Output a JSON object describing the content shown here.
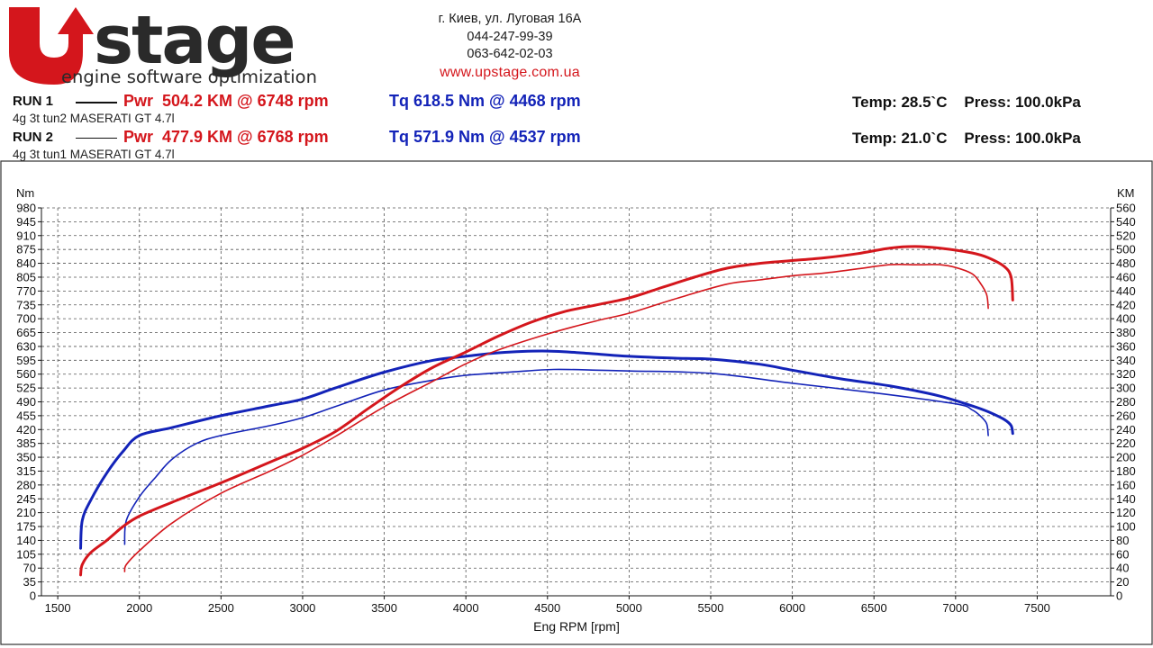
{
  "brand": {
    "logo_text": "UPstage",
    "tagline": "engine software optimization",
    "colors": {
      "red": "#d4161c",
      "dark": "#222222"
    }
  },
  "contacts": {
    "address": "г. Киев, ул. Луговая 16А",
    "phone1": "044-247-99-39",
    "phone2": "063-642-02-03",
    "website": "www.upstage.com.ua"
  },
  "runs": [
    {
      "label": "RUN 1",
      "power": "Pwr  504.2 KM @ 6748 rpm",
      "torque": "Tq 618.5 Nm @ 4468 rpm",
      "conditions": "Temp: 28.5`C    Press: 100.0kPa",
      "description": "4g 3t tun2 MASERATI GT 4.7l"
    },
    {
      "label": "RUN 2",
      "power": "Pwr  477.9 KM @ 6768 rpm",
      "torque": "Tq 571.9 Nm @ 4537 rpm",
      "conditions": "Temp: 21.0`C    Press: 100.0kPa",
      "description": "4g 3t tun1 MASERATI GT 4.7l"
    }
  ],
  "chart_data": {
    "type": "line",
    "xlabel": "Eng RPM [rpm]",
    "ylabel_left": "Nm",
    "ylabel_right": "KM",
    "xlim": [
      1400,
      7950
    ],
    "xticks": [
      1500,
      2000,
      2500,
      3000,
      3500,
      4000,
      4500,
      5000,
      5500,
      6000,
      6500,
      7000,
      7500
    ],
    "ylim_left": [
      0,
      980
    ],
    "yticks_left": [
      0,
      35,
      70,
      105,
      140,
      175,
      210,
      245,
      280,
      315,
      350,
      385,
      420,
      455,
      490,
      525,
      560,
      595,
      630,
      665,
      700,
      735,
      770,
      805,
      840,
      875,
      910,
      945,
      980
    ],
    "ylim_right": [
      0,
      560
    ],
    "yticks_right": [
      0,
      20,
      40,
      60,
      80,
      100,
      120,
      140,
      160,
      180,
      200,
      220,
      240,
      260,
      280,
      300,
      320,
      340,
      360,
      380,
      400,
      420,
      440,
      460,
      480,
      500,
      520,
      540,
      560
    ],
    "grid": true,
    "colors": {
      "power": "#d4161c",
      "torque": "#1323b8"
    },
    "series": [
      {
        "run": "RUN 1",
        "quantity": "torque",
        "axis": "left",
        "weight": "thick",
        "x": [
          1640,
          1650,
          1700,
          1800,
          1900,
          2000,
          2200,
          2500,
          2800,
          3000,
          3200,
          3500,
          3800,
          4000,
          4200,
          4468,
          4700,
          5000,
          5300,
          5500,
          5800,
          6000,
          6300,
          6600,
          6900,
          7100,
          7200,
          7300,
          7340,
          7350
        ],
        "y": [
          120,
          190,
          240,
          310,
          365,
          405,
          425,
          455,
          480,
          497,
          525,
          565,
          595,
          605,
          614,
          618.5,
          614,
          605,
          600,
          598,
          585,
          570,
          548,
          530,
          505,
          480,
          465,
          445,
          430,
          410
        ]
      },
      {
        "run": "RUN 2",
        "quantity": "torque",
        "axis": "left",
        "weight": "thin",
        "x": [
          1910,
          1920,
          2000,
          2100,
          2200,
          2350,
          2500,
          2800,
          3000,
          3200,
          3500,
          3800,
          4000,
          4300,
          4537,
          4800,
          5000,
          5500,
          6000,
          6500,
          7000,
          7100,
          7150,
          7190,
          7200
        ],
        "y": [
          130,
          190,
          250,
          300,
          345,
          385,
          405,
          430,
          450,
          478,
          520,
          545,
          557,
          566,
          571.9,
          570,
          568,
          562,
          537,
          513,
          485,
          470,
          455,
          435,
          405
        ]
      },
      {
        "run": "RUN 1",
        "quantity": "power",
        "axis": "right",
        "weight": "thick",
        "x": [
          1640,
          1650,
          1700,
          1800,
          1900,
          2000,
          2200,
          2500,
          2800,
          3000,
          3200,
          3400,
          3600,
          3800,
          4000,
          4200,
          4400,
          4600,
          4800,
          5000,
          5200,
          5400,
          5600,
          5800,
          6000,
          6200,
          6400,
          6600,
          6748,
          6900,
          7100,
          7200,
          7300,
          7340,
          7350
        ],
        "y": [
          30,
          45,
          62,
          80,
          100,
          115,
          135,
          163,
          193,
          213,
          237,
          270,
          302,
          330,
          352,
          375,
          395,
          410,
          420,
          430,
          445,
          460,
          473,
          480,
          484,
          488,
          494,
          502,
          504.2,
          502,
          495,
          488,
          475,
          460,
          427
        ]
      },
      {
        "run": "RUN 2",
        "quantity": "power",
        "axis": "right",
        "weight": "thin",
        "x": [
          1910,
          1920,
          2000,
          2200,
          2500,
          2800,
          3000,
          3200,
          3500,
          3800,
          4000,
          4200,
          4500,
          4800,
          5000,
          5300,
          5600,
          5800,
          6000,
          6200,
          6400,
          6600,
          6768,
          6900,
          7000,
          7100,
          7150,
          7190,
          7200
        ],
        "y": [
          35,
          45,
          65,
          105,
          148,
          180,
          203,
          230,
          273,
          310,
          335,
          355,
          378,
          397,
          408,
          430,
          450,
          456,
          462,
          466,
          472,
          478,
          477.9,
          478,
          474,
          465,
          452,
          435,
          415
        ]
      }
    ]
  }
}
